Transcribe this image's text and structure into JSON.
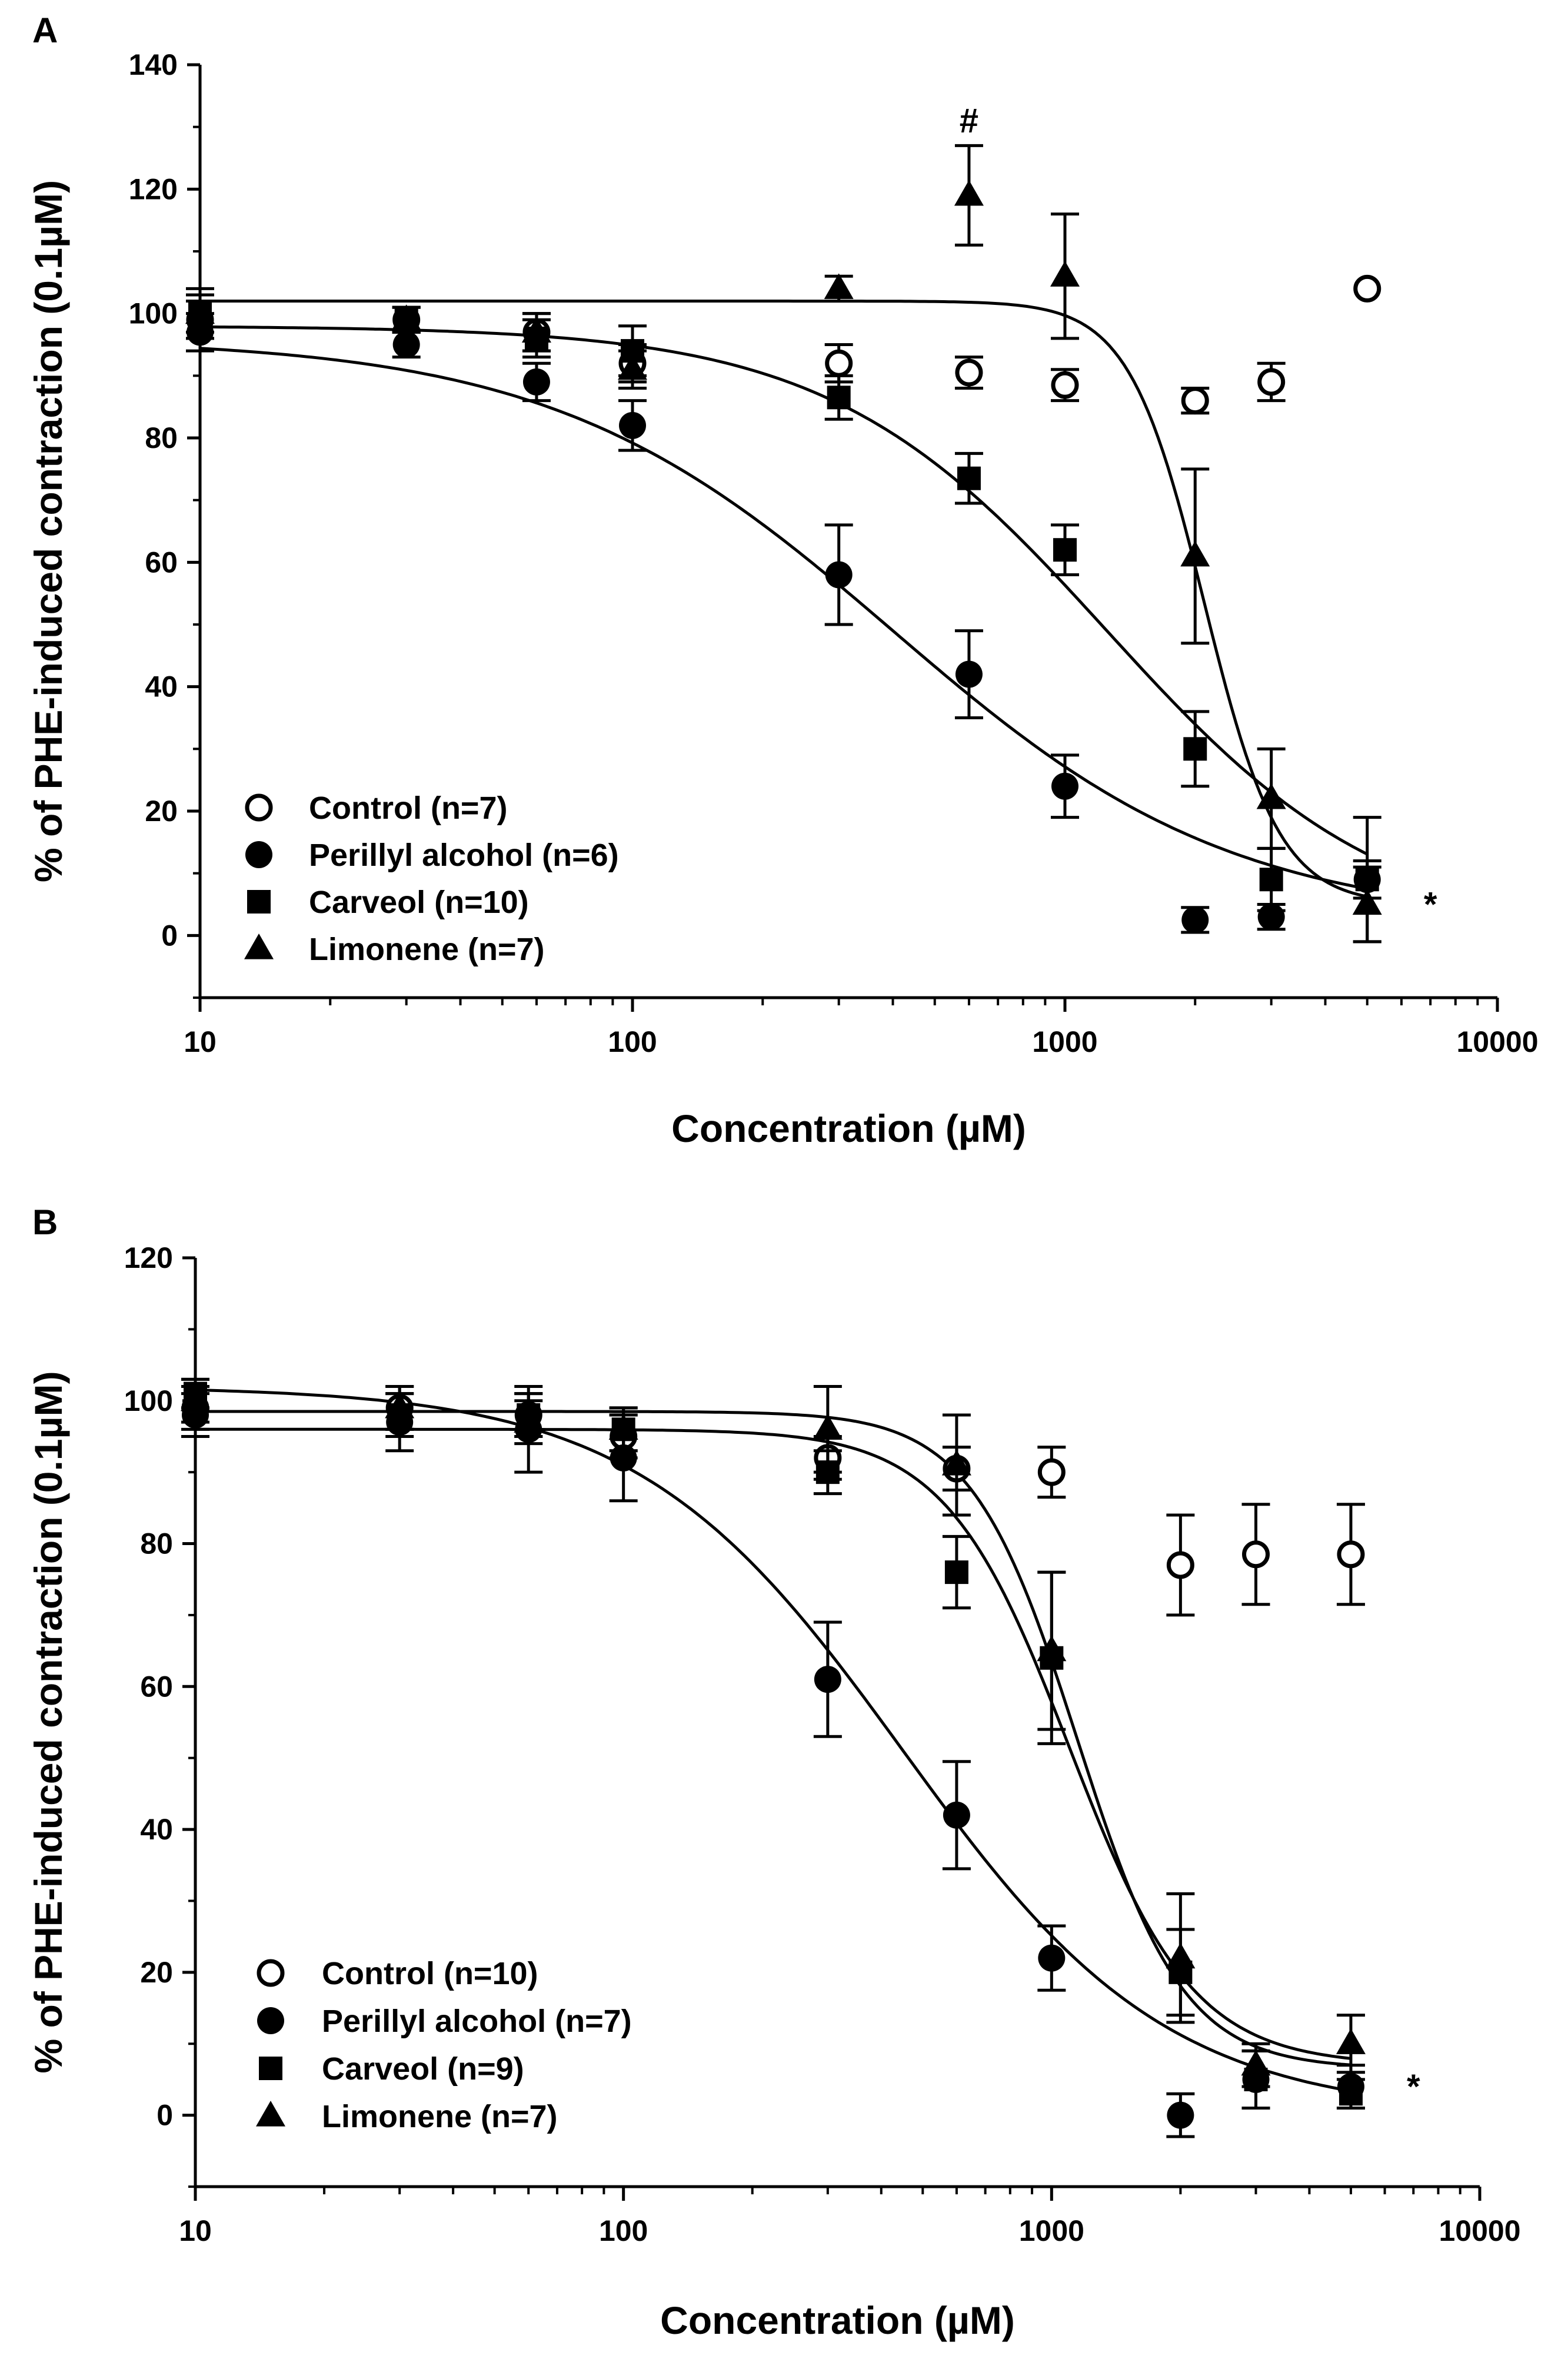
{
  "chart_data": [
    {
      "panel": "A",
      "type": "scatter",
      "xscale": "log",
      "xlabel": "Concentration (µM)",
      "ylabel": "% of PHE-induced contraction (0.1µM)",
      "xlim": [
        10,
        10000
      ],
      "ylim": [
        -10,
        140
      ],
      "xticks": [
        "10",
        "100",
        "1000",
        "10000"
      ],
      "yticks": [
        "0",
        "20",
        "40",
        "60",
        "80",
        "100",
        "120",
        "140"
      ],
      "legend_position": "lower-left",
      "annotations": [
        {
          "text": "#",
          "x": 600,
          "y": 131
        },
        {
          "text": "*",
          "x": 7000,
          "y": 5
        }
      ],
      "series": [
        {
          "name": "Control (n=7)",
          "marker": "open-circle",
          "x": [
            10,
            30,
            60,
            100,
            300,
            600,
            1000,
            2000,
            3000,
            5000
          ],
          "y": [
            99,
            99,
            97,
            92,
            92,
            90.5,
            88.5,
            86,
            89,
            104
          ],
          "err": [
            3,
            2,
            3,
            3,
            3,
            2.5,
            2.5,
            2,
            3,
            0
          ]
        },
        {
          "name": "Perillyl alcohol (n=6)",
          "marker": "filled-circle",
          "x": [
            10,
            30,
            60,
            100,
            300,
            600,
            1000,
            2000,
            3000,
            5000
          ],
          "y": [
            97,
            95,
            89,
            82,
            58,
            42,
            24,
            2.5,
            3,
            9
          ],
          "err": [
            3,
            2,
            3,
            4,
            8,
            7,
            5,
            2,
            2,
            3
          ],
          "fit": {
            "top": 96,
            "bottom": 2,
            "ec50": 400,
            "hill": 1.1
          }
        },
        {
          "name": "Carveol (n=10)",
          "marker": "filled-square",
          "x": [
            10,
            30,
            60,
            100,
            300,
            600,
            1000,
            2000,
            3000,
            5000
          ],
          "y": [
            100,
            99,
            96,
            94,
            86.5,
            73.5,
            62,
            30,
            9,
            9
          ],
          "err": [
            3,
            2,
            3,
            4,
            3.5,
            4,
            4,
            6,
            5,
            10
          ],
          "fit": {
            "top": 98,
            "bottom": 0,
            "ec50": 1250,
            "hill": 1.35
          }
        },
        {
          "name": "Limonene (n=7)",
          "marker": "filled-triangle",
          "x": [
            10,
            30,
            60,
            100,
            300,
            600,
            1000,
            2000,
            3000,
            5000
          ],
          "y": [
            100,
            99,
            97,
            91,
            104,
            119,
            106,
            61,
            22,
            5
          ],
          "err": [
            4,
            2,
            3,
            3,
            2,
            8,
            10,
            14,
            8,
            6
          ],
          "fit": {
            "top": 102,
            "bottom": 5,
            "ec50": 2100,
            "hill": 5
          }
        }
      ]
    },
    {
      "panel": "B",
      "type": "scatter",
      "xscale": "log",
      "xlabel": "Concentration (µM)",
      "ylabel": "% of PHE-induced contraction (0.1µM)",
      "xlim": [
        10,
        10000
      ],
      "ylim": [
        -10,
        120
      ],
      "xticks": [
        "10",
        "100",
        "1000",
        "10000"
      ],
      "yticks": [
        "0",
        "20",
        "40",
        "60",
        "80",
        "100",
        "120"
      ],
      "legend_position": "lower-left",
      "annotations": [
        {
          "text": "*",
          "x": 7000,
          "y": 4
        }
      ],
      "series": [
        {
          "name": "Control (n=10)",
          "marker": "open-circle",
          "x": [
            10,
            30,
            60,
            100,
            300,
            600,
            1000,
            2000,
            3000,
            5000
          ],
          "y": [
            99,
            99,
            98,
            95,
            92,
            90.5,
            90,
            77,
            78.5,
            78.5
          ],
          "err": [
            3,
            3,
            3,
            3,
            3,
            3,
            3.5,
            7,
            7,
            7
          ]
        },
        {
          "name": "Perillyl alcohol (n=7)",
          "marker": "filled-circle",
          "x": [
            10,
            30,
            60,
            100,
            300,
            600,
            1000,
            2000,
            3000,
            5000
          ],
          "y": [
            98,
            97,
            96,
            92,
            61,
            42,
            22,
            0,
            5,
            4
          ],
          "err": [
            3,
            4,
            6,
            6,
            8,
            7.5,
            4.5,
            3,
            4,
            3
          ],
          "fit": {
            "top": 102,
            "bottom": 0,
            "ec50": 450,
            "hill": 1.4
          }
        },
        {
          "name": "Carveol (n=9)",
          "marker": "filled-square",
          "x": [
            10,
            30,
            60,
            100,
            300,
            600,
            1000,
            2000,
            3000,
            5000
          ],
          "y": [
            101,
            98,
            98,
            96,
            90,
            76,
            64,
            20,
            5,
            3
          ],
          "err": [
            2,
            3,
            3,
            3,
            3,
            5,
            12,
            6,
            4,
            2
          ],
          "fit": {
            "top": 96,
            "bottom": 7,
            "ec50": 1100,
            "hill": 3
          }
        },
        {
          "name": "Limonene (n=7)",
          "marker": "filled-triangle",
          "x": [
            10,
            30,
            60,
            100,
            300,
            600,
            1000,
            2000,
            3000,
            5000
          ],
          "y": [
            100,
            99,
            97,
            96,
            96,
            91,
            65,
            22,
            7,
            10
          ],
          "err": [
            3,
            3,
            3,
            3,
            6,
            7,
            11,
            9,
            3,
            4
          ],
          "fit": {
            "top": 98.5,
            "bottom": 6.5,
            "ec50": 1150,
            "hill": 3.5
          }
        }
      ]
    }
  ]
}
